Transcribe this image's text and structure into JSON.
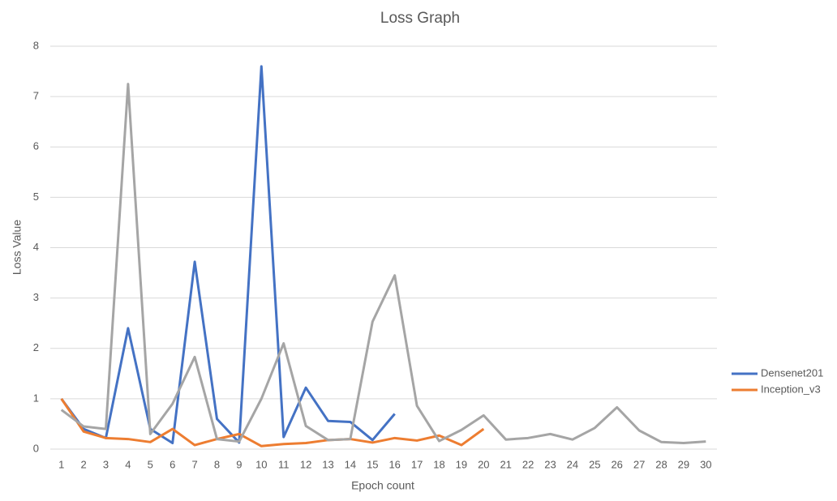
{
  "chart_data": {
    "type": "line",
    "title": "Loss Graph",
    "x_label": "Epoch count",
    "y_label": "Loss Value",
    "categories": [
      1,
      2,
      3,
      4,
      5,
      6,
      7,
      8,
      9,
      10,
      11,
      12,
      13,
      14,
      15,
      16,
      17,
      18,
      19,
      20,
      21,
      22,
      23,
      24,
      25,
      26,
      27,
      28,
      29,
      30
    ],
    "series": [
      {
        "name": "Densenet201",
        "color": "#4472c4",
        "values": [
          1.0,
          0.4,
          0.22,
          2.4,
          0.4,
          0.12,
          3.72,
          0.6,
          0.13,
          7.6,
          0.24,
          1.22,
          0.56,
          0.54,
          0.18,
          0.7,
          null,
          null,
          null,
          null,
          null,
          null,
          null,
          null,
          null,
          null,
          null,
          null,
          null,
          null
        ]
      },
      {
        "name": "Inception_v3",
        "color": "#ed7d31",
        "values": [
          1.0,
          0.35,
          0.22,
          0.2,
          0.14,
          0.4,
          0.08,
          0.2,
          0.3,
          0.06,
          0.1,
          0.12,
          0.18,
          0.2,
          0.13,
          0.22,
          0.17,
          0.27,
          0.08,
          0.4,
          null,
          null,
          null,
          null,
          null,
          null,
          null,
          null,
          null,
          null
        ]
      },
      {
        "color": "#a5a5a5",
        "values": [
          0.78,
          0.45,
          0.4,
          7.25,
          0.3,
          0.9,
          1.83,
          0.2,
          0.15,
          1.0,
          2.1,
          0.46,
          0.18,
          0.2,
          2.53,
          3.45,
          0.86,
          0.16,
          0.38,
          0.67,
          0.19,
          0.22,
          0.3,
          0.19,
          0.42,
          0.83,
          0.37,
          0.14,
          0.12,
          0.15
        ]
      }
    ],
    "ylim": [
      0,
      8
    ],
    "yticks": [
      0,
      1,
      2,
      3,
      4,
      5,
      6,
      7,
      8
    ],
    "grid": true,
    "legend": "right"
  }
}
